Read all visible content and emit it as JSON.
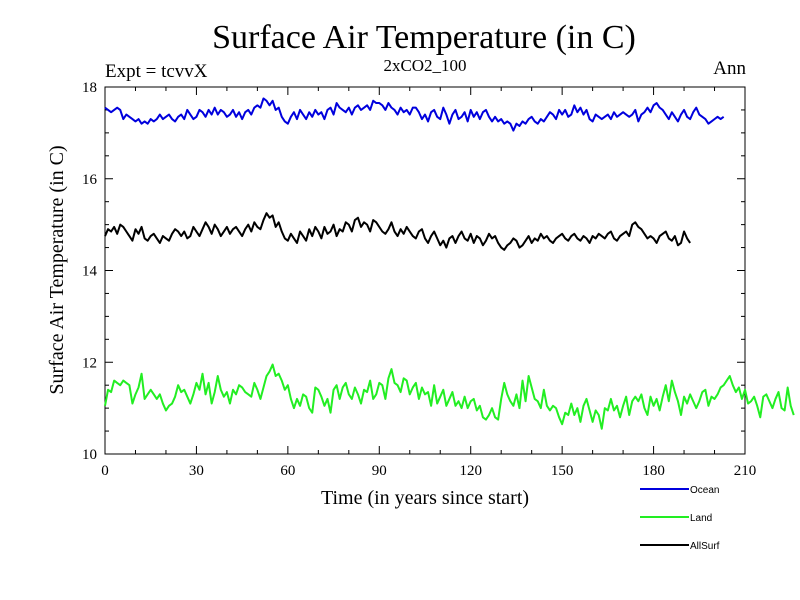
{
  "chart_data": {
    "type": "line",
    "title": "Surface Air Temperature (in C)",
    "subtitle": "2xCO2_100",
    "left_label": "Expt = tcvvX",
    "right_label": "Ann",
    "xlabel": "Time (in years since start)",
    "ylabel": "Surface Air Temperature (in C)",
    "xlim": [
      0,
      210
    ],
    "ylim": [
      10,
      18
    ],
    "x_ticks": [
      0,
      30,
      60,
      90,
      120,
      150,
      180,
      210
    ],
    "y_ticks": [
      10,
      12,
      14,
      16,
      18
    ],
    "grid": false,
    "legend_position": "bottom-right",
    "series": [
      {
        "name": "Ocean",
        "color": "#0000dd",
        "values": [
          17.55,
          17.5,
          17.45,
          17.5,
          17.55,
          17.5,
          17.3,
          17.4,
          17.35,
          17.3,
          17.25,
          17.3,
          17.2,
          17.25,
          17.2,
          17.3,
          17.25,
          17.3,
          17.4,
          17.3,
          17.35,
          17.4,
          17.3,
          17.25,
          17.35,
          17.4,
          17.3,
          17.5,
          17.4,
          17.3,
          17.35,
          17.5,
          17.45,
          17.35,
          17.5,
          17.4,
          17.55,
          17.4,
          17.5,
          17.45,
          17.35,
          17.4,
          17.5,
          17.35,
          17.45,
          17.3,
          17.45,
          17.5,
          17.4,
          17.55,
          17.6,
          17.55,
          17.75,
          17.7,
          17.6,
          17.7,
          17.5,
          17.55,
          17.35,
          17.25,
          17.2,
          17.35,
          17.45,
          17.3,
          17.5,
          17.4,
          17.3,
          17.45,
          17.35,
          17.5,
          17.4,
          17.45,
          17.3,
          17.5,
          17.55,
          17.4,
          17.65,
          17.55,
          17.5,
          17.45,
          17.55,
          17.4,
          17.55,
          17.6,
          17.5,
          17.55,
          17.6,
          17.5,
          17.7,
          17.65,
          17.65,
          17.6,
          17.5,
          17.65,
          17.55,
          17.5,
          17.4,
          17.55,
          17.45,
          17.5,
          17.4,
          17.55,
          17.55,
          17.45,
          17.3,
          17.4,
          17.25,
          17.45,
          17.5,
          17.35,
          17.3,
          17.55,
          17.4,
          17.2,
          17.4,
          17.5,
          17.3,
          17.35,
          17.45,
          17.25,
          17.5,
          17.35,
          17.45,
          17.3,
          17.45,
          17.5,
          17.35,
          17.25,
          17.35,
          17.25,
          17.3,
          17.2,
          17.25,
          17.2,
          17.05,
          17.2,
          17.15,
          17.25,
          17.2,
          17.3,
          17.35,
          17.25,
          17.2,
          17.3,
          17.25,
          17.35,
          17.45,
          17.4,
          17.3,
          17.5,
          17.4,
          17.5,
          17.35,
          17.4,
          17.6,
          17.45,
          17.55,
          17.4,
          17.5,
          17.3,
          17.25,
          17.4,
          17.35,
          17.3,
          17.35,
          17.4,
          17.3,
          17.45,
          17.35,
          17.4,
          17.45,
          17.4,
          17.35,
          17.4,
          17.5,
          17.25,
          17.4,
          17.45,
          17.55,
          17.45,
          17.6,
          17.65,
          17.55,
          17.5,
          17.4,
          17.3,
          17.45,
          17.35,
          17.25,
          17.4,
          17.5,
          17.35,
          17.3,
          17.45,
          17.55,
          17.4,
          17.35,
          17.3,
          17.2,
          17.25,
          17.3,
          17.35,
          17.3,
          17.35
        ]
      },
      {
        "name": "Land",
        "color": "#22ee22",
        "values": [
          11.05,
          11.4,
          11.35,
          11.6,
          11.55,
          11.5,
          11.6,
          11.55,
          11.5,
          11.1,
          11.3,
          11.45,
          11.75,
          11.2,
          11.3,
          11.4,
          11.3,
          11.2,
          11.3,
          11.1,
          10.95,
          11.05,
          11.1,
          11.25,
          11.5,
          11.35,
          11.4,
          11.25,
          11.1,
          11.3,
          11.55,
          11.4,
          11.75,
          11.3,
          11.55,
          11.1,
          11.35,
          11.7,
          11.4,
          11.25,
          11.35,
          11.1,
          11.4,
          11.3,
          11.5,
          11.45,
          11.35,
          11.3,
          11.25,
          11.55,
          11.4,
          11.2,
          11.45,
          11.7,
          11.8,
          11.95,
          11.7,
          11.75,
          11.6,
          11.4,
          11.5,
          11.2,
          11.0,
          11.2,
          11.05,
          11.3,
          11.25,
          11.0,
          10.9,
          11.45,
          11.4,
          11.25,
          11.05,
          11.2,
          10.9,
          11.4,
          11.5,
          11.2,
          11.45,
          11.55,
          11.3,
          11.2,
          11.45,
          11.3,
          11.1,
          11.4,
          11.35,
          11.6,
          11.2,
          11.3,
          11.55,
          11.5,
          11.2,
          11.65,
          11.85,
          11.55,
          11.5,
          11.35,
          11.65,
          11.6,
          11.3,
          11.45,
          11.55,
          11.2,
          11.45,
          11.3,
          11.35,
          11.05,
          11.5,
          11.1,
          11.25,
          11.4,
          11.05,
          11.2,
          11.35,
          11.05,
          11.15,
          11.0,
          11.25,
          11.0,
          11.15,
          11.2,
          10.95,
          11.05,
          10.8,
          10.75,
          10.85,
          11.0,
          10.8,
          10.75,
          11.2,
          11.55,
          11.3,
          11.15,
          11.05,
          11.3,
          11.0,
          11.6,
          11.15,
          11.7,
          11.45,
          11.2,
          11.15,
          11.0,
          11.4,
          11.05,
          10.95,
          11.05,
          11.0,
          10.8,
          10.65,
          10.9,
          10.85,
          11.1,
          10.85,
          11.0,
          10.7,
          11.05,
          11.2,
          10.95,
          10.7,
          10.95,
          10.85,
          10.55,
          11.0,
          10.95,
          11.2,
          10.95,
          11.05,
          10.8,
          11.05,
          11.25,
          10.85,
          11.15,
          11.25,
          11.15,
          11.3,
          11.0,
          10.85,
          11.25,
          11.05,
          11.2,
          10.95,
          11.25,
          11.5,
          11.15,
          11.6,
          11.35,
          11.15,
          10.85,
          11.25,
          11.1,
          11.3,
          11.15,
          11.0,
          11.15,
          11.35,
          11.4,
          11.05,
          11.25,
          11.2,
          11.3,
          11.45,
          11.5,
          11.6,
          11.7,
          11.5,
          11.35,
          11.45,
          11.2,
          11.4,
          11.1,
          11.15,
          11.25,
          11.05,
          10.8,
          11.25,
          11.3,
          11.15,
          11.0,
          11.2,
          11.35,
          11.0,
          10.95,
          11.45,
          11.05,
          10.85
        ]
      },
      {
        "name": "AllSurf",
        "color": "#000000",
        "values": [
          14.75,
          14.9,
          14.85,
          14.95,
          14.8,
          15.0,
          14.95,
          14.85,
          14.75,
          14.65,
          14.9,
          14.8,
          14.95,
          14.7,
          14.65,
          14.75,
          14.8,
          14.7,
          14.6,
          14.75,
          14.7,
          14.65,
          14.8,
          14.9,
          14.85,
          14.75,
          14.85,
          14.7,
          14.75,
          14.95,
          14.85,
          14.75,
          14.9,
          15.05,
          14.95,
          14.8,
          15.0,
          14.9,
          14.75,
          14.85,
          14.95,
          14.8,
          14.9,
          14.95,
          14.85,
          14.75,
          14.9,
          15.0,
          14.85,
          15.05,
          14.95,
          14.9,
          15.1,
          15.25,
          15.15,
          15.2,
          14.95,
          15.05,
          14.85,
          14.7,
          14.65,
          14.8,
          14.7,
          14.6,
          14.85,
          14.75,
          14.65,
          14.9,
          14.75,
          14.95,
          14.85,
          14.7,
          14.95,
          14.8,
          14.85,
          15.0,
          14.75,
          14.9,
          14.85,
          15.05,
          15.0,
          14.85,
          15.1,
          15.15,
          14.95,
          15.05,
          15.0,
          14.85,
          15.1,
          15.05,
          14.95,
          14.85,
          14.8,
          14.9,
          15.05,
          14.85,
          14.75,
          14.9,
          14.8,
          14.95,
          14.85,
          14.75,
          14.7,
          14.85,
          14.9,
          14.7,
          14.6,
          14.75,
          14.85,
          14.7,
          14.55,
          14.65,
          14.5,
          14.7,
          14.75,
          14.6,
          14.75,
          14.85,
          14.7,
          14.65,
          14.8,
          14.6,
          14.75,
          14.7,
          14.55,
          14.65,
          14.8,
          14.7,
          14.75,
          14.6,
          14.5,
          14.45,
          14.55,
          14.6,
          14.7,
          14.65,
          14.5,
          14.55,
          14.65,
          14.75,
          14.6,
          14.7,
          14.65,
          14.8,
          14.7,
          14.75,
          14.65,
          14.6,
          14.7,
          14.75,
          14.8,
          14.7,
          14.65,
          14.75,
          14.8,
          14.7,
          14.65,
          14.75,
          14.7,
          14.6,
          14.75,
          14.7,
          14.8,
          14.75,
          14.7,
          14.8,
          14.85,
          14.7,
          14.65,
          14.75,
          14.8,
          14.85,
          14.75,
          15.0,
          15.05,
          14.95,
          14.9,
          14.8,
          14.7,
          14.75,
          14.7,
          14.6,
          14.75,
          14.8,
          14.85,
          14.7,
          14.65,
          14.75,
          14.55,
          14.6,
          14.85,
          14.7,
          14.6
        ]
      }
    ]
  }
}
